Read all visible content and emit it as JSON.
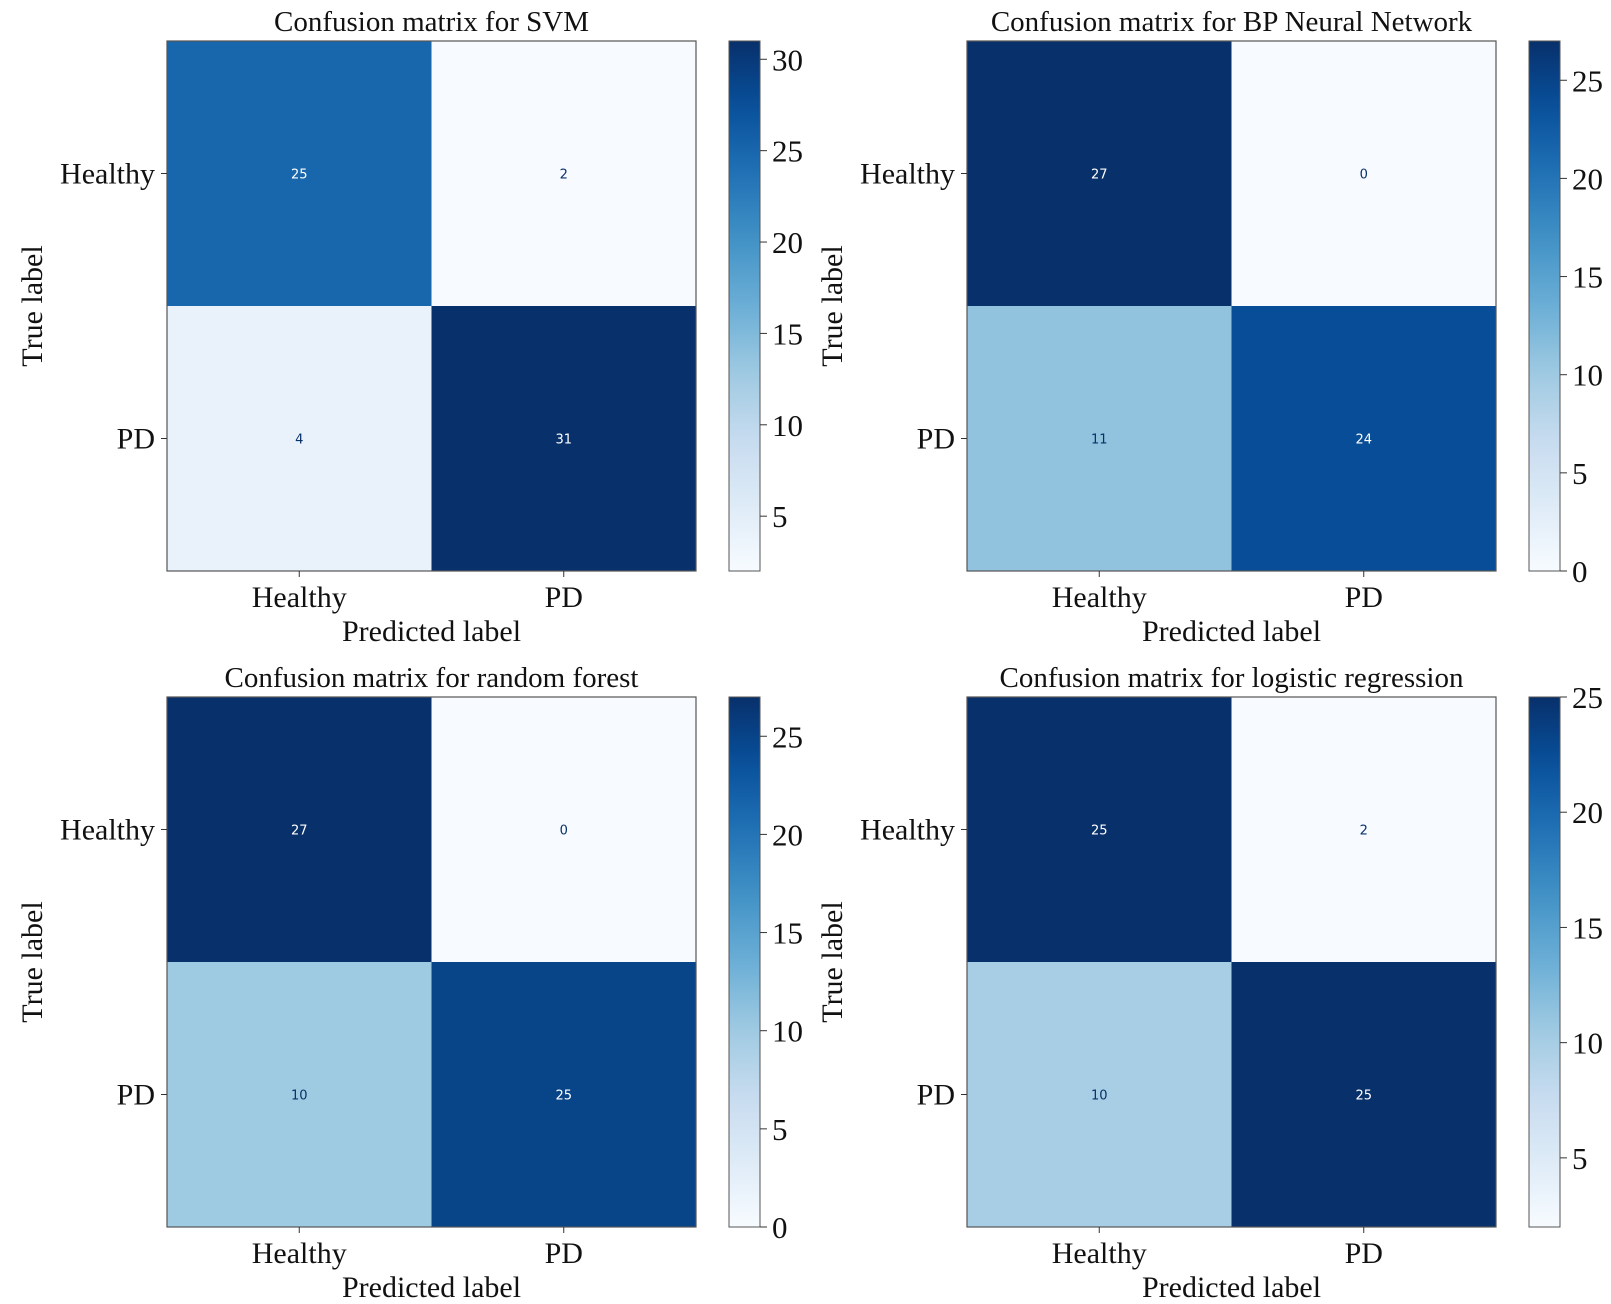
{
  "chart_data": [
    {
      "type": "heatmap",
      "title": "Confusion matrix for SVM",
      "xlabel": "Predicted label",
      "ylabel": "True label",
      "x_categories": [
        "Healthy",
        "PD"
      ],
      "y_categories": [
        "Healthy",
        "PD"
      ],
      "values": [
        [
          25,
          2
        ],
        [
          4,
          31
        ]
      ],
      "colorbar": {
        "range": [
          2,
          31
        ],
        "ticks": [
          5,
          10,
          15,
          20,
          25,
          30
        ],
        "colormap": "Blues"
      }
    },
    {
      "type": "heatmap",
      "title": "Confusion matrix for BP Neural Network",
      "xlabel": "Predicted label",
      "ylabel": "True label",
      "x_categories": [
        "Healthy",
        "PD"
      ],
      "y_categories": [
        "Healthy",
        "PD"
      ],
      "values": [
        [
          27,
          0
        ],
        [
          11,
          24
        ]
      ],
      "colorbar": {
        "range": [
          0,
          27
        ],
        "ticks": [
          0,
          5,
          10,
          15,
          20,
          25
        ],
        "colormap": "Blues"
      }
    },
    {
      "type": "heatmap",
      "title": "Confusion matrix for random forest",
      "xlabel": "Predicted label",
      "ylabel": "True label",
      "x_categories": [
        "Healthy",
        "PD"
      ],
      "y_categories": [
        "Healthy",
        "PD"
      ],
      "values": [
        [
          27,
          0
        ],
        [
          10,
          25
        ]
      ],
      "colorbar": {
        "range": [
          0,
          27
        ],
        "ticks": [
          0,
          5,
          10,
          15,
          20,
          25
        ],
        "colormap": "Blues"
      }
    },
    {
      "type": "heatmap",
      "title": "Confusion matrix for logistic regression",
      "xlabel": "Predicted label",
      "ylabel": "True label",
      "x_categories": [
        "Healthy",
        "PD"
      ],
      "y_categories": [
        "Healthy",
        "PD"
      ],
      "values": [
        [
          25,
          2
        ],
        [
          10,
          25
        ]
      ],
      "colorbar": {
        "range": [
          2,
          25
        ],
        "ticks": [
          5,
          10,
          15,
          20,
          25
        ],
        "colormap": "Blues"
      }
    }
  ],
  "colors": {
    "colormap_stops": [
      "#f7fbff",
      "#deebf7",
      "#c6dbef",
      "#9ecae1",
      "#6baed6",
      "#4292c6",
      "#2171b5",
      "#08519c",
      "#08306b"
    ],
    "light_text": "#ffffff",
    "dark_text": "#08306b",
    "axis_line": "#555555"
  }
}
